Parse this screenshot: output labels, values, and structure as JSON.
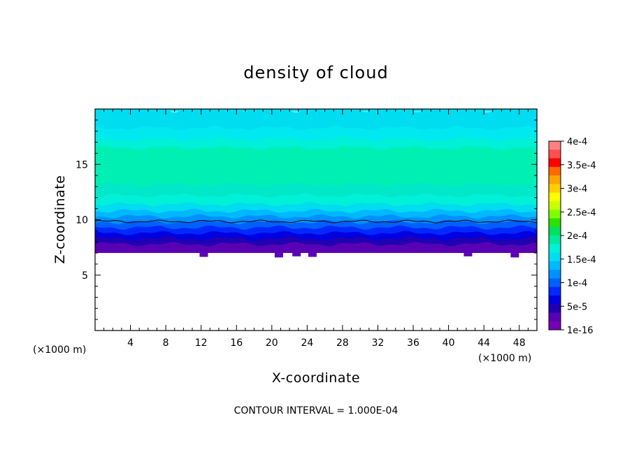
{
  "chart_data": {
    "type": "heatmap",
    "title": "density of cloud",
    "xlabel": "X-coordinate",
    "ylabel": "Z-coordinate",
    "x_unit": "(×1000 m)",
    "y_unit": "(×1000 m)",
    "xlim": [
      0,
      50
    ],
    "ylim": [
      0,
      20
    ],
    "x_ticks": [
      4,
      8,
      12,
      16,
      20,
      24,
      28,
      32,
      36,
      40,
      44,
      48
    ],
    "y_ticks": [
      5,
      10,
      15
    ],
    "footnote": "CONTOUR INTERVAL = 1.000E-04",
    "colorbar": {
      "labels": [
        "4e-4",
        "3.5e-4",
        "3e-4",
        "2.5e-4",
        "2e-4",
        "1.5e-4",
        "1e-4",
        "5e-5",
        "1e-16"
      ],
      "colors": [
        "#ff8080",
        "#ff5050",
        "#ff0000",
        "#ff6a00",
        "#ffa500",
        "#ffd000",
        "#ffff00",
        "#c8ff00",
        "#80ff00",
        "#30e000",
        "#00e060",
        "#00e8a0",
        "#00f0d8",
        "#00dcf0",
        "#00b8ff",
        "#0090ff",
        "#0060ff",
        "#0028ff",
        "#0000e0",
        "#2000b0",
        "#5a00b4",
        "#7800b4"
      ]
    },
    "layers": [
      {
        "z_top": 7.8,
        "color": "#5a00b4"
      },
      {
        "z_top": 8.3,
        "color": "#2000b0"
      },
      {
        "z_top": 8.8,
        "color": "#0000e0"
      },
      {
        "z_top": 9.3,
        "color": "#0028ff"
      },
      {
        "z_top": 9.8,
        "color": "#0060ff"
      },
      {
        "z_top": 10.3,
        "color": "#0090ff"
      },
      {
        "z_top": 10.8,
        "color": "#00b8ff"
      },
      {
        "z_top": 11.4,
        "color": "#00dcf0"
      },
      {
        "z_top": 12.2,
        "color": "#00f0d8"
      },
      {
        "z_top": 13.2,
        "color": "#00e8c8"
      },
      {
        "z_top": 16.5,
        "color": "#00f0b4"
      },
      {
        "z_top": 17.3,
        "color": "#00f0d8"
      },
      {
        "z_top": 18.3,
        "color": "#00e8f0"
      },
      {
        "z_top": 19.9,
        "color": "#00dcf0"
      }
    ],
    "cloud_base_z": 7.0,
    "contour_line_z": 9.85
  }
}
